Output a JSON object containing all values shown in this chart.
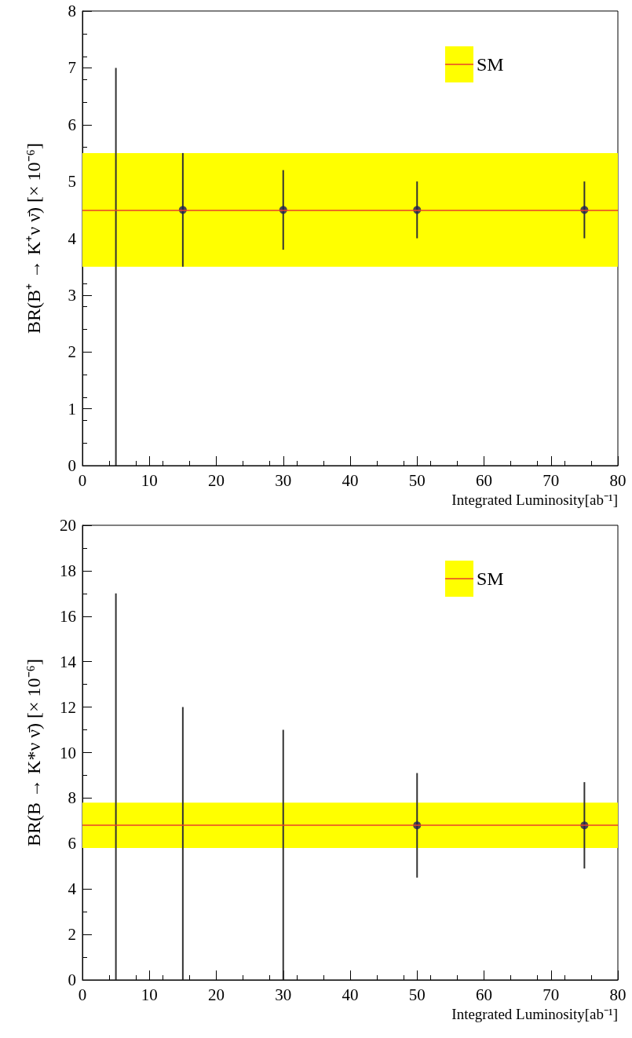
{
  "chart_data": [
    {
      "type": "scatter",
      "xlabel": "Integrated Luminosity[ab⁻¹]",
      "ylabel": "BR(B⁺ → K⁺ν ν̄) [× 10⁻⁶]",
      "xlim": [
        0,
        80
      ],
      "xticks": [
        0,
        10,
        20,
        30,
        40,
        50,
        60,
        70,
        80
      ],
      "ylim": [
        0,
        8
      ],
      "yticks": [
        0,
        1,
        2,
        3,
        4,
        5,
        6,
        7,
        8
      ],
      "grid": false,
      "legend": "top right",
      "marker": "circle",
      "series": [
        {
          "color": "#1c1c5c",
          "x": [
            15,
            30,
            50,
            75
          ],
          "values": [
            4.5,
            4.5,
            4.5,
            4.5
          ],
          "errors": [
            [
              3.5,
              5.5
            ],
            [
              3.8,
              5.2
            ],
            [
              4.0,
              5.0
            ],
            [
              4.0,
              5.0
            ]
          ]
        },
        {
          "type": "bar",
          "color": "#333333",
          "x": [
            5
          ],
          "base": [
            0
          ],
          "values": [
            7
          ]
        }
      ],
      "ref_lines": [
        {
          "axis": "y",
          "value": 4.5,
          "color": "#e8402a"
        }
      ],
      "bands": [
        {
          "axis": "y",
          "from": 3.5,
          "to": 5.5,
          "label": "SM",
          "color": "#ffff00"
        }
      ]
    },
    {
      "type": "scatter",
      "xlabel": "Integrated Luminosity[ab⁻¹]",
      "ylabel": "BR(B → K*ν ν̄) [× 10⁻⁶]",
      "xlim": [
        0,
        80
      ],
      "xticks": [
        0,
        10,
        20,
        30,
        40,
        50,
        60,
        70,
        80
      ],
      "ylim": [
        0,
        20
      ],
      "yticks": [
        0,
        2,
        4,
        6,
        8,
        10,
        12,
        14,
        16,
        18,
        20
      ],
      "grid": false,
      "legend": "top right",
      "marker": "circle",
      "series": [
        {
          "color": "#1c1c5c",
          "x": [
            50,
            75
          ],
          "values": [
            6.8,
            6.8
          ],
          "errors": [
            [
              4.5,
              9.1
            ],
            [
              4.9,
              8.7
            ]
          ]
        },
        {
          "type": "bar",
          "color": "#333333",
          "x": [
            5,
            15,
            30
          ],
          "base": [
            0,
            0,
            0
          ],
          "values": [
            17,
            12,
            11
          ]
        }
      ],
      "ref_lines": [
        {
          "axis": "y",
          "value": 6.8,
          "color": "#e8402a"
        }
      ],
      "bands": [
        {
          "axis": "y",
          "from": 5.8,
          "to": 7.8,
          "label": "SM",
          "color": "#ffff00"
        }
      ]
    }
  ]
}
